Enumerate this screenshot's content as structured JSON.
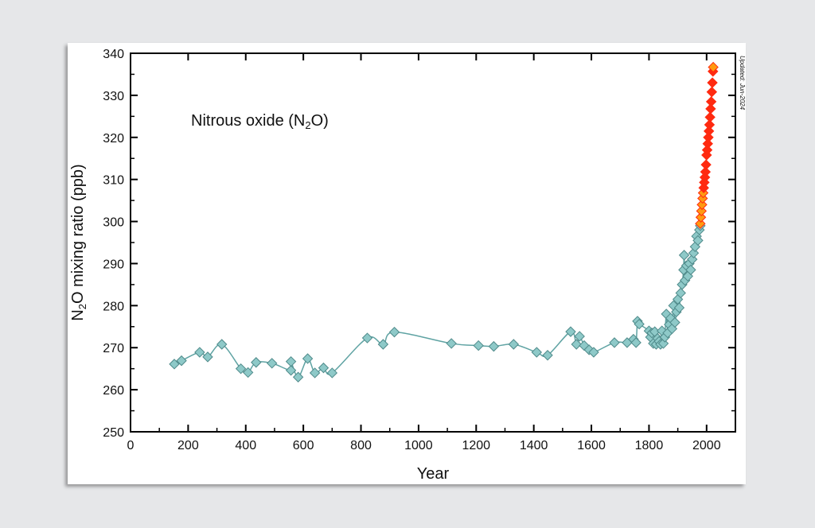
{
  "chart_data": {
    "type": "scatter",
    "title": "Nitrous oxide (N",
    "title_sub": "2",
    "title_end": "O)",
    "xlabel": "Year",
    "ylabel_main": "N",
    "ylabel_sub": "2",
    "ylabel_end": "O mixing ratio (ppb)",
    "annotation": "Updated: Jun-2024",
    "xlim": [
      0,
      2100
    ],
    "ylim": [
      250,
      340
    ],
    "xticks": [
      0,
      200,
      400,
      600,
      800,
      1000,
      1200,
      1400,
      1600,
      1800,
      2000
    ],
    "yticks": [
      250,
      260,
      270,
      280,
      290,
      300,
      310,
      320,
      330,
      340
    ],
    "grid": false,
    "colors": {
      "ice_core": "#8ec9c8",
      "ice_core_edge": "#4f8a8a",
      "curve": "#5fa3a3",
      "instrumental": "#ff2a10",
      "instrumental_recent_early": "#ff9a10"
    },
    "series": [
      {
        "marker": "diamond",
        "x": [
          152,
          177,
          240,
          268,
          317,
          383,
          408,
          436,
          491,
          557,
          557,
          582,
          615,
          640,
          670,
          700,
          822,
          877,
          916,
          1114,
          1208,
          1261,
          1330,
          1410,
          1448,
          1528,
          1548,
          1559,
          1575,
          1592,
          1608,
          1680,
          1724,
          1746,
          1755,
          1760,
          1766,
          1800,
          1805,
          1810,
          1815,
          1820,
          1825,
          1830,
          1835,
          1840,
          1845,
          1850,
          1855,
          1860,
          1865,
          1870,
          1875,
          1880,
          1885,
          1890,
          1895,
          1900,
          1905,
          1910,
          1915,
          1920,
          1922,
          1925,
          1930,
          1935,
          1940,
          1945,
          1950,
          1955,
          1960,
          1965,
          1970,
          1975,
          1978
        ],
        "y": [
          266.1,
          266.9,
          268.9,
          267.8,
          270.8,
          265.0,
          264.1,
          266.5,
          266.3,
          264.6,
          266.7,
          263.0,
          267.4,
          264.0,
          265.2,
          264.0,
          272.3,
          270.8,
          273.7,
          271.0,
          270.5,
          270.3,
          270.8,
          268.9,
          268.2,
          273.8,
          270.8,
          272.7,
          270.5,
          269.5,
          268.9,
          271.2,
          271.2,
          272.0,
          271.2,
          276.3,
          275.6,
          274.0,
          272.5,
          273.5,
          271.0,
          273.8,
          270.8,
          272.2,
          271.5,
          270.8,
          274.0,
          271.0,
          272.5,
          278.0,
          273.5,
          275.5,
          277.0,
          274.5,
          280.0,
          276.0,
          278.5,
          281.5,
          279.5,
          283.0,
          285.0,
          288.5,
          292.0,
          286.0,
          289.5,
          287.0,
          290.0,
          288.5,
          291.0,
          292.5,
          294.0,
          296.5,
          295.5,
          298.0,
          299.0
        ]
      },
      {
        "marker": "diamond",
        "x": [
          1978,
          1980,
          1982,
          1984,
          1986,
          1988,
          1990,
          1992,
          1994,
          1996,
          1998,
          2000,
          2002,
          2004,
          2006,
          2008,
          2010,
          2012,
          2014,
          2016,
          2018,
          2020,
          2022,
          2023
        ],
        "y": [
          299.5,
          301.0,
          302.5,
          304.0,
          305.5,
          306.8,
          308.0,
          309.3,
          310.5,
          311.8,
          313.5,
          315.8,
          317.0,
          318.5,
          320.0,
          321.5,
          323.0,
          324.8,
          326.8,
          328.5,
          330.8,
          333.0,
          335.7,
          336.7
        ]
      }
    ]
  }
}
